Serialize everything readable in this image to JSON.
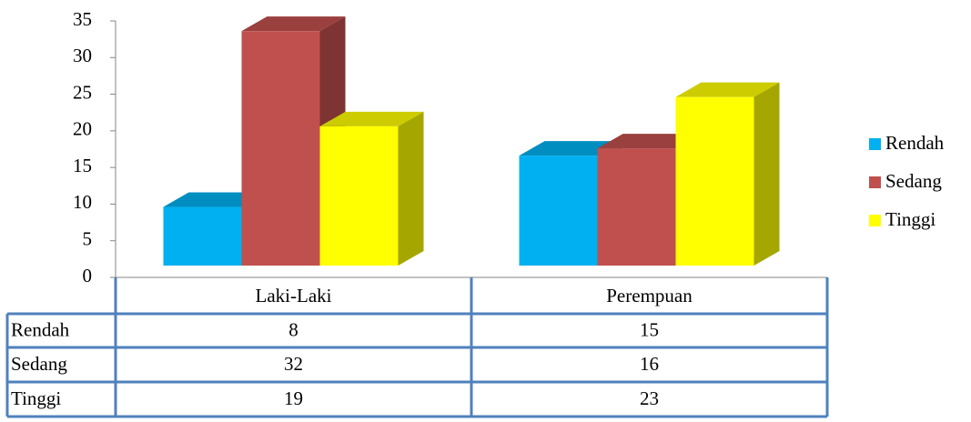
{
  "chart_data": {
    "type": "bar3d",
    "categories": [
      "Laki-Laki",
      "Perempuan"
    ],
    "series": [
      {
        "name": "Rendah",
        "color": "#00b0f0",
        "values": [
          8,
          15
        ]
      },
      {
        "name": "Sedang",
        "color": "#c0504d",
        "values": [
          32,
          16
        ]
      },
      {
        "name": "Tinggi",
        "color": "#ffff00",
        "values": [
          19,
          23
        ]
      }
    ],
    "ylim": [
      0,
      35
    ],
    "yticks": [
      0,
      5,
      10,
      15,
      20,
      25,
      30,
      35
    ],
    "legend": "right",
    "data_table": true
  }
}
